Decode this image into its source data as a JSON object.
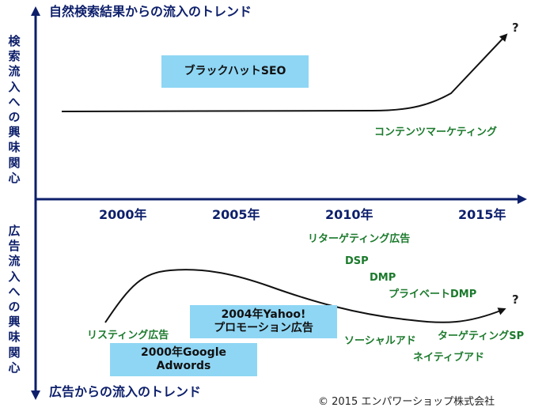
{
  "top_title": "自然検索結果からの流入のトレンド",
  "bottom_title": "広告からの流入のトレンド",
  "top_axis_label": "検索流入への興味関心",
  "bottom_axis_label": "広告流入への興味関心",
  "years": [
    "2000年",
    "2005年",
    "2010年",
    "2015年"
  ],
  "top": {
    "box_label": "ブラックハットSEO",
    "content_marketing": "コンテンツマーケティング",
    "question": "?"
  },
  "bottom": {
    "retargeting": "リターゲティング広告",
    "dsp": "DSP",
    "dmp": "DMP",
    "private_dmp": "プライベートDMP",
    "question": "?",
    "listing": "リスティング広告",
    "yahoo_line1": "2004年Yahoo!",
    "yahoo_line2": "プロモーション広告",
    "google_line1": "2000年Google",
    "google_line2": "Adwords",
    "social": "ソーシャルアド",
    "target_sp": "ターゲティングSP",
    "native": "ネイティブアド"
  },
  "copyright": "© 2015 エンパワーショップ株式会社",
  "colors": {
    "axis": "#0d1f6b",
    "label_green": "#1b7a2c",
    "box_fill": "#8fd6f4",
    "curve": "#111111"
  }
}
